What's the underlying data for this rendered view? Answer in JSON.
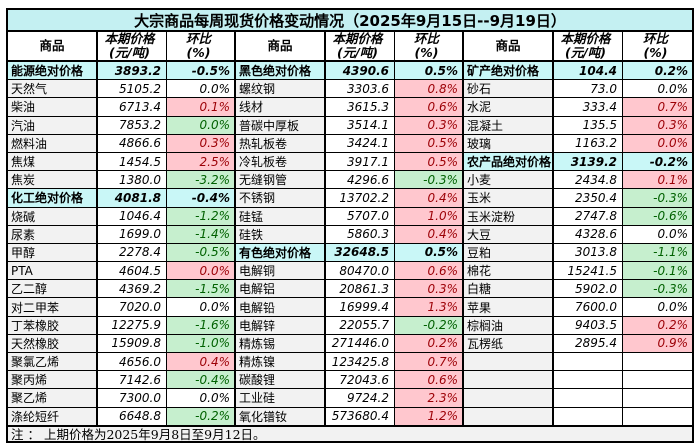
{
  "title": "大宗商品每周现货价格变动情况（2025年9月15日--9月19日）",
  "header": {
    "commodity": "商品",
    "price_line1": "本期价格",
    "price_line2": "(元/吨)",
    "pct_line1": "环比",
    "pct_line2": "(%)"
  },
  "note": "注 ： 上期价格为2025年9月8日至9月12日。",
  "colors": {
    "title_bg": "#c4f0f2",
    "category_bg": "#c9f7f7",
    "name_bg": "#f2f2f2",
    "up_bg": "#ffc7ce",
    "up_text": "#9c0006",
    "down_bg": "#c6efce",
    "down_text": "#006100",
    "border": "#000000"
  },
  "groups": [
    {
      "rows": [
        {
          "name": "能源绝对价格",
          "price": "3893.2",
          "pct": "-0.5%",
          "style": "cat"
        },
        {
          "name": "天然气",
          "price": "5105.2",
          "pct": "0.0%",
          "style": "flat"
        },
        {
          "name": "柴油",
          "price": "6713.4",
          "pct": "0.1%",
          "style": "up"
        },
        {
          "name": "汽油",
          "price": "7853.2",
          "pct": "0.0%",
          "style": "down"
        },
        {
          "name": "燃料油",
          "price": "4866.6",
          "pct": "0.3%",
          "style": "up"
        },
        {
          "name": "焦煤",
          "price": "1454.5",
          "pct": "2.5%",
          "style": "up"
        },
        {
          "name": "焦炭",
          "price": "1380.0",
          "pct": "-3.2%",
          "style": "down"
        },
        {
          "name": "化工绝对价格",
          "price": "4081.8",
          "pct": "-0.4%",
          "style": "cat"
        },
        {
          "name": "烧碱",
          "price": "1046.4",
          "pct": "-1.2%",
          "style": "down"
        },
        {
          "name": "尿素",
          "price": "1699.0",
          "pct": "-1.4%",
          "style": "down"
        },
        {
          "name": "甲醇",
          "price": "2278.4",
          "pct": "-0.5%",
          "style": "down"
        },
        {
          "name": "PTA",
          "price": "4604.5",
          "pct": "0.0%",
          "style": "up"
        },
        {
          "name": "乙二醇",
          "price": "4369.2",
          "pct": "-1.5%",
          "style": "down"
        },
        {
          "name": "对二甲苯",
          "price": "7020.0",
          "pct": "0.0%",
          "style": "flat"
        },
        {
          "name": "丁苯橡胶",
          "price": "12275.9",
          "pct": "-1.6%",
          "style": "down"
        },
        {
          "name": "天然橡胶",
          "price": "15909.8",
          "pct": "-1.0%",
          "style": "down"
        },
        {
          "name": "聚氯乙烯",
          "price": "4656.0",
          "pct": "0.4%",
          "style": "up"
        },
        {
          "name": "聚丙烯",
          "price": "7142.6",
          "pct": "-0.4%",
          "style": "down"
        },
        {
          "name": "聚乙烯",
          "price": "7300.0",
          "pct": "0.0%",
          "style": "flat"
        },
        {
          "name": "涤纶短纤",
          "price": "6648.8",
          "pct": "-0.2%",
          "style": "down"
        }
      ]
    },
    {
      "rows": [
        {
          "name": "黑色绝对价格",
          "price": "4390.6",
          "pct": "0.5%",
          "style": "cat"
        },
        {
          "name": "螺纹钢",
          "price": "3303.6",
          "pct": "0.8%",
          "style": "up"
        },
        {
          "name": "线材",
          "price": "3615.3",
          "pct": "0.6%",
          "style": "up"
        },
        {
          "name": "普碳中厚板",
          "price": "3514.1",
          "pct": "0.3%",
          "style": "up"
        },
        {
          "name": "热轧板卷",
          "price": "3424.1",
          "pct": "0.5%",
          "style": "up"
        },
        {
          "name": "冷轧板卷",
          "price": "3917.1",
          "pct": "0.5%",
          "style": "up"
        },
        {
          "name": "无缝钢管",
          "price": "4296.6",
          "pct": "-0.3%",
          "style": "down"
        },
        {
          "name": "不锈钢",
          "price": "13702.2",
          "pct": "0.4%",
          "style": "up"
        },
        {
          "name": "硅锰",
          "price": "5707.0",
          "pct": "1.0%",
          "style": "up"
        },
        {
          "name": "硅铁",
          "price": "5860.3",
          "pct": "0.4%",
          "style": "up"
        },
        {
          "name": "有色绝对价格",
          "price": "32648.5",
          "pct": "0.5%",
          "style": "cat"
        },
        {
          "name": "电解铜",
          "price": "80470.0",
          "pct": "0.6%",
          "style": "up"
        },
        {
          "name": "电解铝",
          "price": "20861.3",
          "pct": "0.3%",
          "style": "up"
        },
        {
          "name": "电解铅",
          "price": "16999.4",
          "pct": "1.3%",
          "style": "up"
        },
        {
          "name": "电解锌",
          "price": "22055.7",
          "pct": "-0.2%",
          "style": "down"
        },
        {
          "name": "精炼锡",
          "price": "271446.0",
          "pct": "0.2%",
          "style": "up"
        },
        {
          "name": "精炼镍",
          "price": "123425.8",
          "pct": "0.7%",
          "style": "up"
        },
        {
          "name": "碳酸锂",
          "price": "72043.6",
          "pct": "0.6%",
          "style": "up"
        },
        {
          "name": "工业硅",
          "price": "9724.2",
          "pct": "2.3%",
          "style": "up"
        },
        {
          "name": "氧化镨钕",
          "price": "573680.4",
          "pct": "1.2%",
          "style": "up"
        }
      ]
    },
    {
      "rows": [
        {
          "name": "矿产绝对价格",
          "price": "104.4",
          "pct": "0.2%",
          "style": "cat"
        },
        {
          "name": "砂石",
          "price": "73.0",
          "pct": "0.0%",
          "style": "flat"
        },
        {
          "name": "水泥",
          "price": "333.4",
          "pct": "0.7%",
          "style": "up"
        },
        {
          "name": "混凝土",
          "price": "135.5",
          "pct": "0.3%",
          "style": "up"
        },
        {
          "name": "玻璃",
          "price": "1163.2",
          "pct": "0.0%",
          "style": "up"
        },
        {
          "name": "农产品绝对价格",
          "price": "3139.2",
          "pct": "-0.2%",
          "style": "cat"
        },
        {
          "name": "小麦",
          "price": "2434.8",
          "pct": "0.1%",
          "style": "up"
        },
        {
          "name": "玉米",
          "price": "2350.4",
          "pct": "-0.3%",
          "style": "down"
        },
        {
          "name": "玉米淀粉",
          "price": "2747.8",
          "pct": "-0.6%",
          "style": "down"
        },
        {
          "name": "大豆",
          "price": "4328.6",
          "pct": "0.0%",
          "style": "flat"
        },
        {
          "name": "豆粕",
          "price": "3013.8",
          "pct": "-1.1%",
          "style": "down"
        },
        {
          "name": "棉花",
          "price": "15241.5",
          "pct": "-0.1%",
          "style": "down"
        },
        {
          "name": "白糖",
          "price": "5902.0",
          "pct": "-0.3%",
          "style": "down"
        },
        {
          "name": "苹果",
          "price": "7600.0",
          "pct": "0.0%",
          "style": "flat"
        },
        {
          "name": "棕榈油",
          "price": "9403.5",
          "pct": "0.2%",
          "style": "up"
        },
        {
          "name": "瓦楞纸",
          "price": "2895.4",
          "pct": "0.9%",
          "style": "up"
        }
      ]
    }
  ]
}
